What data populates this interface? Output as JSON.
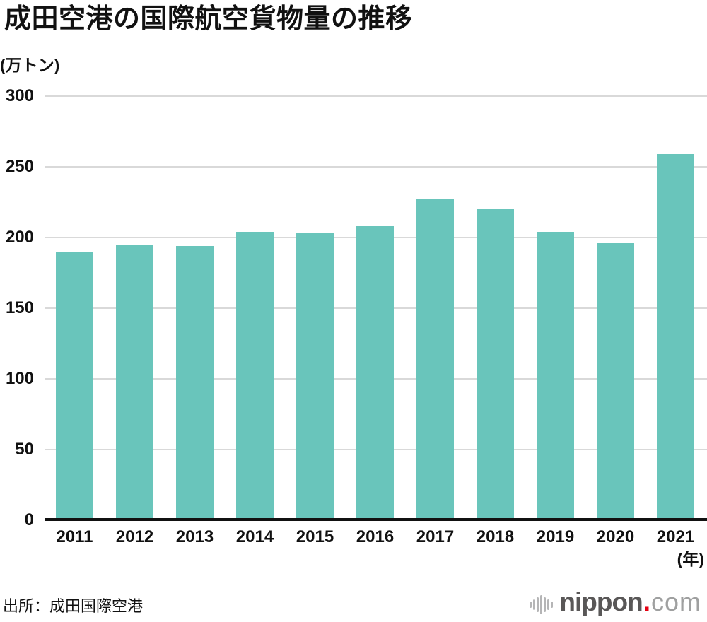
{
  "page": {
    "background": "#ffffff"
  },
  "header": {
    "title": "成田空港の国際航空貨物量の推移"
  },
  "chart_data": {
    "type": "bar",
    "title": "成田空港の国際航空貨物量の推移",
    "unit_label": "(万トン)",
    "x_unit_label": "(年)",
    "categories": [
      "2011",
      "2012",
      "2013",
      "2014",
      "2015",
      "2016",
      "2017",
      "2018",
      "2019",
      "2020",
      "2021"
    ],
    "values": [
      190,
      195,
      194,
      204,
      203,
      208,
      227,
      220,
      204,
      196,
      259
    ],
    "ylim": [
      0,
      300
    ],
    "yticks": [
      0,
      50,
      100,
      150,
      200,
      250,
      300
    ],
    "grid": true,
    "legend_position": "none",
    "bar_color": "#69c5bb",
    "gridline_color": "#d9d9d9",
    "axis_color": "#111111",
    "tick_label_color": "#111111"
  },
  "footer": {
    "source": "出所：成田国際空港",
    "logo": {
      "icon": "soundwave-icon",
      "name_bold": "nippon",
      "dot": ".",
      "name_light": "com",
      "dot_color": "#e60012"
    }
  }
}
